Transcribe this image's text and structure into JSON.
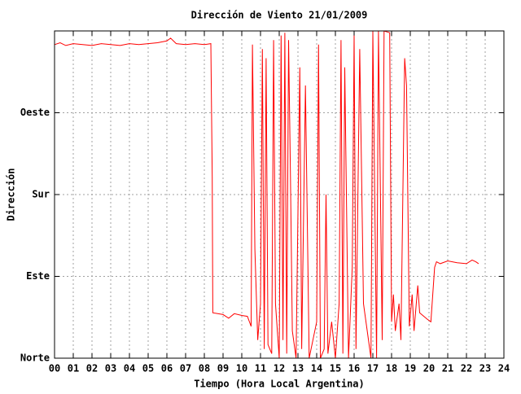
{
  "chart_data": {
    "type": "line",
    "title": "Dirección de Viento 21/01/2009",
    "x_label": "Tiempo (Hora Local Argentina)",
    "y_label": "Dirección",
    "xlim": [
      0,
      24
    ],
    "ylim": [
      0,
      360
    ],
    "grid": true,
    "xticks": [
      {
        "value": 0,
        "label": "00"
      },
      {
        "value": 1,
        "label": "01"
      },
      {
        "value": 2,
        "label": "02"
      },
      {
        "value": 3,
        "label": "03"
      },
      {
        "value": 4,
        "label": "04"
      },
      {
        "value": 5,
        "label": "05"
      },
      {
        "value": 6,
        "label": "06"
      },
      {
        "value": 7,
        "label": "07"
      },
      {
        "value": 8,
        "label": "08"
      },
      {
        "value": 9,
        "label": "09"
      },
      10,
      11,
      12,
      13,
      14,
      15,
      16,
      17,
      18,
      19,
      20,
      21,
      22,
      23,
      24
    ],
    "yticks": [
      {
        "value": 0,
        "label": "Norte"
      },
      {
        "value": 90,
        "label": "Este"
      },
      {
        "value": 180,
        "label": "Sur"
      },
      {
        "value": 270,
        "label": "Oeste"
      }
    ],
    "series": [
      {
        "color": "#ff0000",
        "x": [
          0,
          0.3,
          0.6,
          1,
          1.5,
          2,
          2.5,
          3,
          3.5,
          4,
          4.5,
          5,
          5.5,
          6,
          6.2,
          6.5,
          7,
          7.5,
          8,
          8.35,
          8.42,
          8.45,
          9,
          9.3,
          9.6,
          10,
          10.3,
          10.5,
          10.57,
          10.7,
          10.85,
          11.0,
          11.1,
          11.2,
          11.3,
          11.4,
          11.6,
          11.7,
          11.8,
          12.0,
          12.1,
          12.2,
          12.3,
          12.4,
          12.5,
          12.6,
          12.7,
          12.9,
          13.1,
          13.2,
          13.4,
          13.6,
          14.0,
          14.1,
          14.2,
          14.4,
          14.5,
          14.6,
          14.8,
          15.0,
          15.2,
          15.3,
          15.4,
          15.5,
          15.7,
          15.9,
          16.0,
          16.1,
          16.3,
          16.5,
          16.9,
          17.0,
          17.2,
          17.3,
          17.5,
          17.6,
          17.9,
          18.0,
          18.1,
          18.2,
          18.4,
          18.5,
          18.7,
          18.8,
          18.95,
          19.1,
          19.2,
          19.4,
          19.5,
          19.9,
          20.1,
          20.3,
          20.4,
          20.6,
          21,
          21.5,
          22,
          22.3,
          22.5,
          22.65
        ],
        "values": [
          345,
          347,
          344,
          346,
          345,
          344,
          346,
          345,
          344,
          346,
          345,
          346,
          347,
          349,
          352,
          346,
          345,
          346,
          345,
          346,
          200,
          50,
          48,
          44,
          49,
          47,
          46,
          35,
          345,
          120,
          20,
          60,
          340,
          10,
          330,
          15,
          5,
          350,
          60,
          0,
          355,
          20,
          358,
          5,
          350,
          200,
          30,
          0,
          320,
          10,
          300,
          0,
          40,
          345,
          0,
          10,
          180,
          5,
          40,
          0,
          60,
          350,
          5,
          320,
          0,
          100,
          355,
          10,
          340,
          60,
          0,
          360,
          0,
          360,
          20,
          360,
          358,
          40,
          70,
          30,
          60,
          20,
          330,
          300,
          35,
          70,
          30,
          80,
          50,
          43,
          40,
          100,
          106,
          104,
          107,
          105,
          104,
          108,
          106,
          104
        ]
      }
    ]
  }
}
